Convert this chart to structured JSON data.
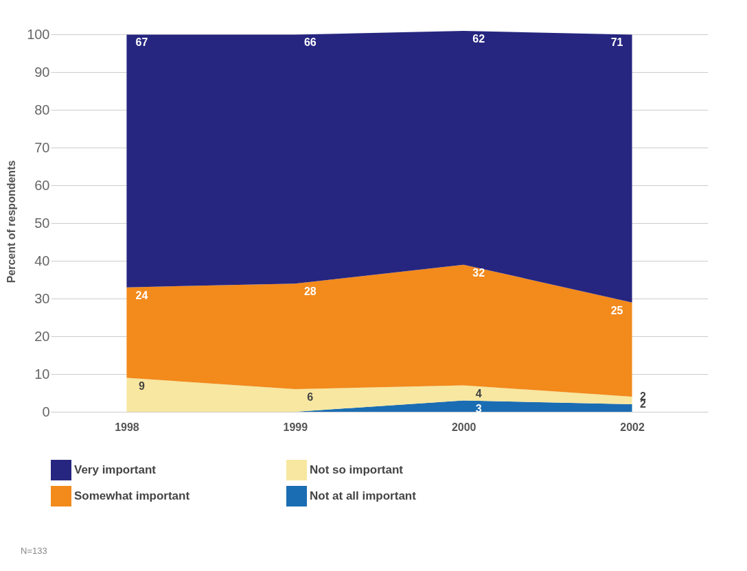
{
  "chart_data": {
    "type": "area",
    "stacked": true,
    "categories": [
      "1998",
      "1999",
      "2000",
      "2002"
    ],
    "series": [
      {
        "name": "Not at all important",
        "color": "#1a6db3",
        "values": [
          0,
          0,
          3,
          2
        ],
        "value_labels": [
          null,
          null,
          "3",
          "2"
        ]
      },
      {
        "name": "Not so important",
        "color": "#f7e7a0",
        "values": [
          9,
          6,
          4,
          2
        ],
        "value_labels": [
          "9",
          "6",
          "4",
          "2"
        ]
      },
      {
        "name": "Somewhat important",
        "color": "#f28a1c",
        "values": [
          24,
          28,
          32,
          25
        ],
        "value_labels": [
          "24",
          "28",
          "32",
          "25"
        ]
      },
      {
        "name": "Very important",
        "color": "#262680",
        "values": [
          67,
          66,
          62,
          71
        ],
        "value_labels": [
          "67",
          "66",
          "62",
          "71"
        ]
      }
    ],
    "ylabel": "Percent of respondents",
    "ylim": [
      0,
      101
    ],
    "yticks": [
      0,
      10,
      20,
      30,
      40,
      50,
      60,
      70,
      80,
      90,
      100
    ],
    "grid": "y",
    "legend": "bottom",
    "annotations": [
      "N=133"
    ]
  }
}
